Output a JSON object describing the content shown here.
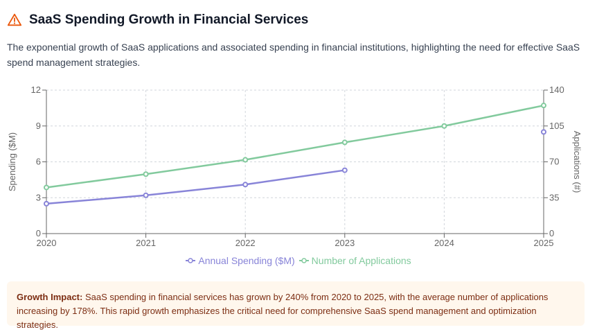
{
  "header": {
    "icon": "warning-triangle-icon",
    "title": "SaaS Spending Growth in Financial Services"
  },
  "description": "The exponential growth of SaaS applications and associated spending in financial institutions, highlighting the need for effective SaaS spend management strategies.",
  "colors": {
    "spending": "#8884d8",
    "applications": "#82ca9d",
    "accent": "#ea580c",
    "impact_bg": "#fff7ed",
    "impact_text": "#7c2d12"
  },
  "chart_data": {
    "type": "line",
    "categories": [
      "2020",
      "2021",
      "2022",
      "2023",
      "2024",
      "2025"
    ],
    "series": [
      {
        "name": "Annual Spending ($M)",
        "axis": "left",
        "values": [
          2.5,
          3.2,
          4.1,
          5.3,
          null,
          8.5
        ],
        "color": "#8884d8"
      },
      {
        "name": "Number of Applications",
        "axis": "right",
        "values": [
          45,
          58,
          72,
          89,
          105,
          125
        ],
        "color": "#82ca9d"
      }
    ],
    "ylabel": "Spending ($M)",
    "y2label": "Applications (#)",
    "ylim": [
      0,
      12
    ],
    "y2lim": [
      0,
      140
    ],
    "yticks": [
      "0",
      "3",
      "6",
      "9",
      "12"
    ],
    "y2ticks": [
      "0",
      "35",
      "70",
      "105",
      "140"
    ],
    "grid": true,
    "legend": "bottom"
  },
  "impact": {
    "label": "Growth Impact:",
    "text": "SaaS spending in financial services has grown by 240% from 2020 to 2025, with the average number of applications increasing by 178%. This rapid growth emphasizes the critical need for comprehensive SaaS spend management and optimization strategies."
  }
}
